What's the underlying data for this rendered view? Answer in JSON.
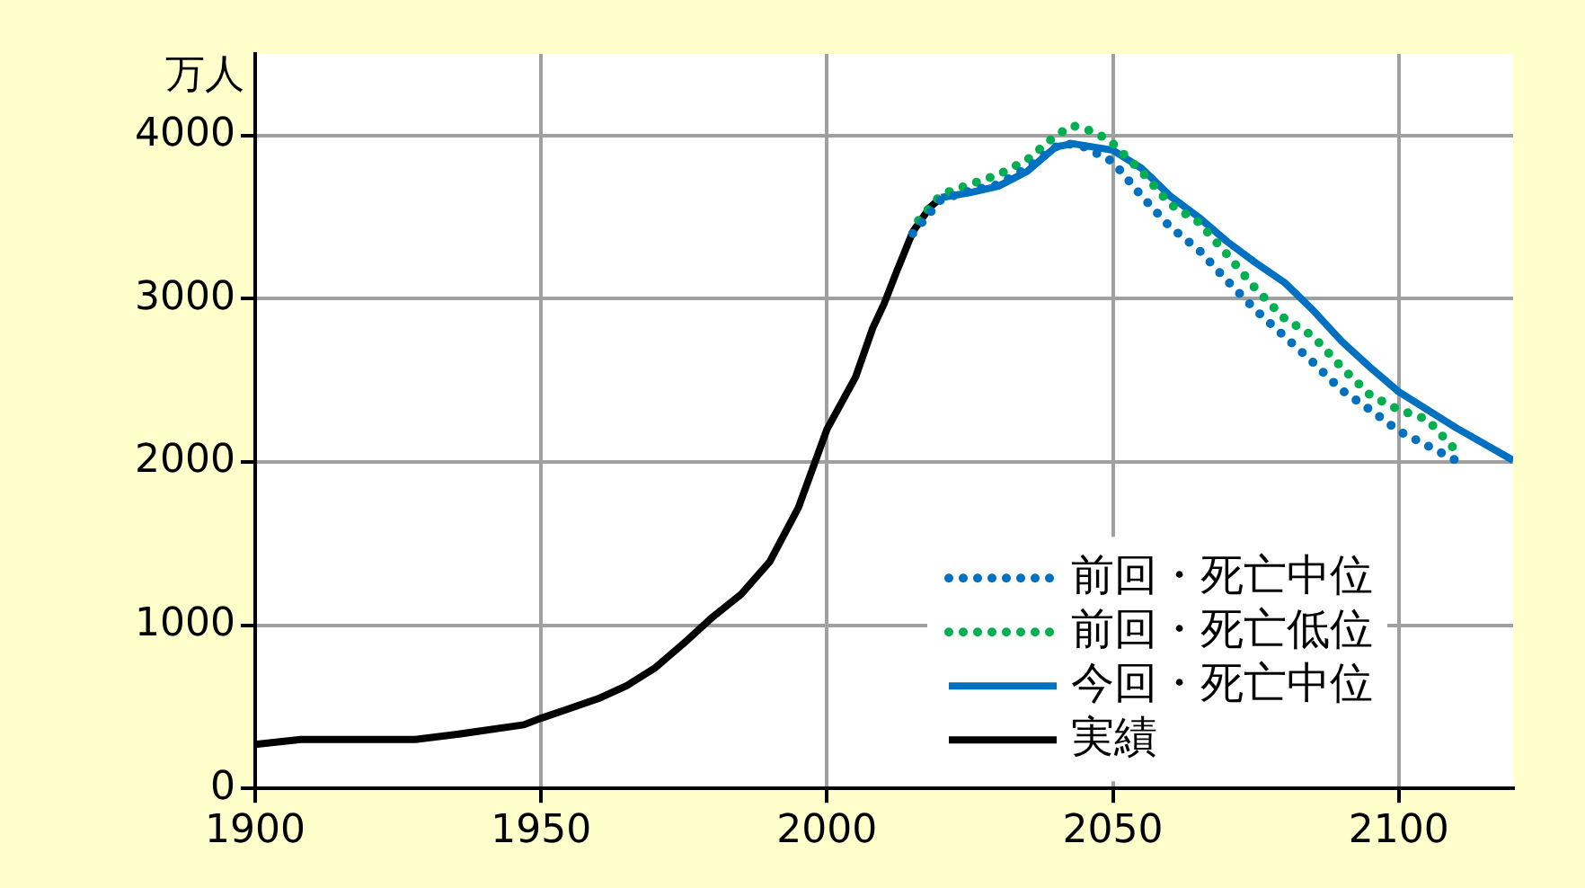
{
  "chart_data": {
    "type": "line",
    "ylabel": "万人",
    "xlim": [
      1900,
      2120
    ],
    "xticks": [
      1900,
      1950,
      2000,
      2050,
      2100
    ],
    "ylim": [
      0,
      4500
    ],
    "yticks": [
      0,
      1000,
      2000,
      3000,
      4000
    ],
    "grid": true,
    "legend": "bottom right",
    "marker": "none",
    "series": [
      {
        "name": "前回・死亡中位",
        "color": "#0070c0",
        "line_style": "dotted",
        "x": [
          2015,
          2020,
          2025,
          2030,
          2035,
          2040,
          2042,
          2045,
          2050,
          2055,
          2060,
          2065,
          2070,
          2075,
          2080,
          2085,
          2090,
          2095,
          2100,
          2110
        ],
        "values": [
          3400,
          3610,
          3660,
          3700,
          3800,
          3930,
          3950,
          3930,
          3840,
          3630,
          3440,
          3300,
          3110,
          2930,
          2770,
          2610,
          2440,
          2320,
          2190,
          2010
        ]
      },
      {
        "name": "前回・死亡低位",
        "color": "#00b050",
        "line_style": "dotted",
        "x": [
          2016,
          2020,
          2025,
          2030,
          2035,
          2040,
          2043,
          2047,
          2050,
          2055,
          2060,
          2065,
          2070,
          2075,
          2080,
          2085,
          2090,
          2095,
          2100,
          2105,
          2110
        ],
        "values": [
          3480,
          3640,
          3700,
          3760,
          3850,
          4000,
          4060,
          4020,
          3950,
          3780,
          3580,
          3470,
          3270,
          3060,
          2880,
          2770,
          2580,
          2410,
          2320,
          2260,
          2070
        ]
      },
      {
        "name": "今回・死亡中位",
        "color": "#0070c0",
        "line_style": "solid",
        "x": [
          2020,
          2025,
          2030,
          2035,
          2040,
          2043,
          2050,
          2055,
          2060,
          2065,
          2070,
          2075,
          2080,
          2085,
          2090,
          2095,
          2100,
          2110,
          2120
        ],
        "values": [
          3620,
          3650,
          3690,
          3780,
          3930,
          3950,
          3910,
          3800,
          3630,
          3500,
          3350,
          3220,
          3100,
          2930,
          2740,
          2580,
          2430,
          2210,
          2010
        ]
      },
      {
        "name": "実績",
        "color": "#000000",
        "line_style": "solid",
        "x": [
          1900,
          1908,
          1928,
          1935,
          1947,
          1950,
          1955,
          1960,
          1965,
          1970,
          1975,
          1980,
          1985,
          1990,
          1995,
          2000,
          2005,
          2008,
          2010,
          2012,
          2015,
          2018,
          2020
        ],
        "values": [
          270,
          300,
          300,
          330,
          390,
          430,
          490,
          550,
          630,
          740,
          890,
          1050,
          1190,
          1390,
          1720,
          2200,
          2520,
          2820,
          2970,
          3150,
          3410,
          3560,
          3620
        ]
      }
    ]
  }
}
